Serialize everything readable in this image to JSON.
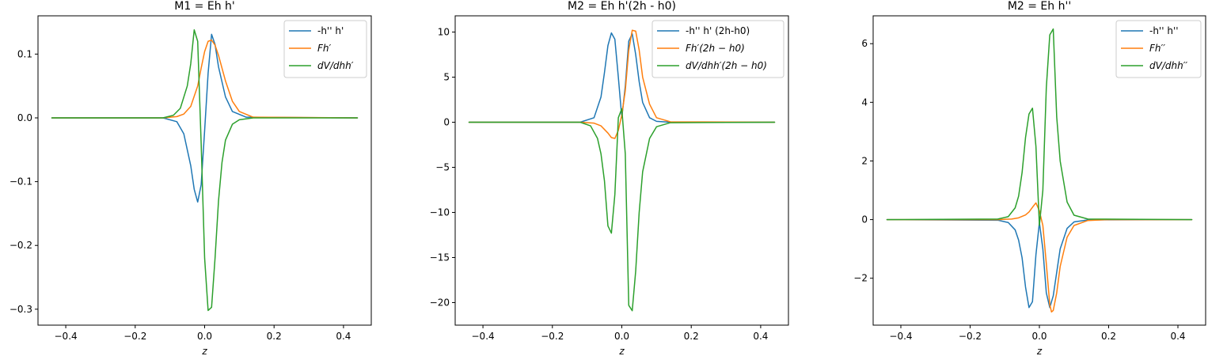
{
  "chart_data": [
    {
      "type": "line",
      "title": "M1 = Eh h'",
      "xlabel": "z",
      "ylabel": "",
      "xlim": [
        -0.48,
        0.48
      ],
      "ylim": [
        -0.325,
        0.16
      ],
      "xticks": [
        -0.4,
        -0.2,
        0.0,
        0.2,
        0.4
      ],
      "xtick_labels": [
        "−0.4",
        "−0.2",
        "0.0",
        "0.2",
        "0.4"
      ],
      "yticks": [
        -0.3,
        -0.2,
        -0.1,
        0.0,
        0.1
      ],
      "ytick_labels": [
        "−0.3",
        "−0.2",
        "−0.1",
        "0.0",
        "0.1"
      ],
      "legend": "top-right",
      "grid": false,
      "series": [
        {
          "name": "-h'' h'",
          "color": "#1f77b4",
          "x": [
            -0.44,
            -0.12,
            -0.08,
            -0.06,
            -0.04,
            -0.03,
            -0.02,
            -0.01,
            0.0,
            0.01,
            0.02,
            0.03,
            0.04,
            0.06,
            0.08,
            0.12,
            0.44
          ],
          "y": [
            0.0,
            0.0,
            -0.006,
            -0.025,
            -0.075,
            -0.112,
            -0.132,
            -0.105,
            -0.02,
            0.07,
            0.131,
            0.115,
            0.08,
            0.033,
            0.01,
            0.001,
            0.0
          ]
        },
        {
          "name": "Fh′",
          "color": "#ff7f0e",
          "x": [
            -0.44,
            -0.12,
            -0.08,
            -0.06,
            -0.04,
            -0.02,
            -0.01,
            0.0,
            0.01,
            0.02,
            0.03,
            0.04,
            0.06,
            0.08,
            0.1,
            0.14,
            0.44
          ],
          "y": [
            0.0,
            0.0,
            0.002,
            0.006,
            0.018,
            0.05,
            0.078,
            0.104,
            0.12,
            0.122,
            0.114,
            0.098,
            0.058,
            0.026,
            0.01,
            0.001,
            0.0
          ]
        },
        {
          "name": "dV/dhh′",
          "color": "#2ca02c",
          "x": [
            -0.44,
            -0.12,
            -0.09,
            -0.07,
            -0.05,
            -0.04,
            -0.03,
            -0.02,
            -0.01,
            0.0,
            0.01,
            0.02,
            0.03,
            0.04,
            0.05,
            0.06,
            0.08,
            0.1,
            0.14,
            0.44
          ],
          "y": [
            0.0,
            0.0,
            0.004,
            0.015,
            0.05,
            0.085,
            0.138,
            0.12,
            -0.04,
            -0.22,
            -0.302,
            -0.297,
            -0.22,
            -0.13,
            -0.07,
            -0.035,
            -0.01,
            -0.003,
            0.0,
            0.0
          ]
        }
      ]
    },
    {
      "type": "line",
      "title": "M2 = Eh h'(2h - h0)",
      "xlabel": "z",
      "ylabel": "",
      "xlim": [
        -0.48,
        0.48
      ],
      "ylim": [
        -22.5,
        11.8
      ],
      "xticks": [
        -0.4,
        -0.2,
        0.0,
        0.2,
        0.4
      ],
      "xtick_labels": [
        "−0.4",
        "−0.2",
        "0.0",
        "0.2",
        "0.4"
      ],
      "yticks": [
        -20,
        -15,
        -10,
        -5,
        0,
        5,
        10
      ],
      "ytick_labels": [
        "−20",
        "−15",
        "−10",
        "−5",
        "0",
        "5",
        "10"
      ],
      "legend": "top-right",
      "grid": false,
      "series": [
        {
          "name": "-h'' h' (2h-h0)",
          "color": "#1f77b4",
          "x": [
            -0.44,
            -0.12,
            -0.08,
            -0.06,
            -0.05,
            -0.04,
            -0.03,
            -0.02,
            -0.01,
            0.0,
            0.01,
            0.02,
            0.03,
            0.04,
            0.05,
            0.06,
            0.08,
            0.1,
            0.14,
            0.44
          ],
          "y": [
            0.0,
            0.0,
            0.5,
            2.8,
            5.5,
            8.5,
            9.9,
            9.2,
            5.0,
            0.5,
            4.0,
            9.0,
            9.8,
            7.5,
            4.5,
            2.2,
            0.5,
            0.1,
            0.0,
            0.0
          ]
        },
        {
          "name": "Fh′(2h − h0)",
          "color": "#ff7f0e",
          "x": [
            -0.44,
            -0.12,
            -0.08,
            -0.06,
            -0.04,
            -0.03,
            -0.02,
            -0.01,
            0.0,
            0.01,
            0.02,
            0.03,
            0.04,
            0.05,
            0.06,
            0.08,
            0.1,
            0.14,
            0.44
          ],
          "y": [
            0.0,
            0.0,
            -0.1,
            -0.4,
            -1.2,
            -1.7,
            -1.8,
            -0.9,
            0.8,
            3.5,
            8.0,
            10.2,
            10.1,
            8.0,
            5.0,
            2.0,
            0.5,
            0.05,
            0.0
          ]
        },
        {
          "name": "dV/dhh′(2h − h0)",
          "color": "#2ca02c",
          "x": [
            -0.44,
            -0.12,
            -0.09,
            -0.07,
            -0.06,
            -0.05,
            -0.04,
            -0.03,
            -0.02,
            -0.01,
            0.0,
            0.01,
            0.02,
            0.03,
            0.04,
            0.05,
            0.06,
            0.08,
            0.1,
            0.14,
            0.44
          ],
          "y": [
            0.0,
            0.0,
            -0.4,
            -1.8,
            -3.5,
            -6.5,
            -11.5,
            -12.3,
            -8.0,
            0.5,
            1.5,
            -3.5,
            -20.3,
            -20.9,
            -16.5,
            -10.0,
            -5.5,
            -1.8,
            -0.5,
            -0.05,
            0.0
          ]
        }
      ]
    },
    {
      "type": "line",
      "title": "M2 = Eh h''",
      "xlabel": "z",
      "ylabel": "",
      "xlim": [
        -0.48,
        0.48
      ],
      "ylim": [
        -3.6,
        6.95
      ],
      "xticks": [
        -0.4,
        -0.2,
        0.0,
        0.2,
        0.4
      ],
      "xtick_labels": [
        "−0.4",
        "−0.2",
        "0.0",
        "0.2",
        "0.4"
      ],
      "yticks": [
        -2,
        0,
        2,
        4,
        6
      ],
      "ytick_labels": [
        "−2",
        "0",
        "2",
        "4",
        "6"
      ],
      "legend": "top-right",
      "grid": false,
      "series": [
        {
          "name": "-h'' h''",
          "color": "#1f77b4",
          "x": [
            -0.44,
            -0.12,
            -0.09,
            -0.07,
            -0.06,
            -0.05,
            -0.04,
            -0.03,
            -0.02,
            -0.01,
            0.0,
            0.01,
            0.02,
            0.03,
            0.04,
            0.05,
            0.06,
            0.08,
            0.1,
            0.14,
            0.44
          ],
          "y": [
            0.0,
            -0.02,
            -0.1,
            -0.35,
            -0.7,
            -1.3,
            -2.3,
            -3.0,
            -2.8,
            -1.2,
            -0.1,
            -1.0,
            -2.5,
            -3.0,
            -2.6,
            -1.8,
            -1.0,
            -0.3,
            -0.08,
            -0.01,
            0.0
          ]
        },
        {
          "name": "Fh′′",
          "color": "#ff7f0e",
          "x": [
            -0.44,
            -0.12,
            -0.08,
            -0.06,
            -0.04,
            -0.03,
            -0.02,
            -0.01,
            0.0,
            0.01,
            0.02,
            0.03,
            0.035,
            0.04,
            0.05,
            0.06,
            0.08,
            0.1,
            0.14,
            0.2,
            0.44
          ],
          "y": [
            0.0,
            0.0,
            0.02,
            0.06,
            0.16,
            0.26,
            0.42,
            0.57,
            0.3,
            -0.2,
            -1.5,
            -2.9,
            -3.15,
            -3.1,
            -2.5,
            -1.6,
            -0.6,
            -0.2,
            -0.03,
            0.0,
            0.0
          ]
        },
        {
          "name": "dV/dhh′′",
          "color": "#2ca02c",
          "x": [
            -0.44,
            -0.12,
            -0.09,
            -0.07,
            -0.06,
            -0.05,
            -0.04,
            -0.03,
            -0.02,
            -0.01,
            0.0,
            0.01,
            0.02,
            0.03,
            0.04,
            0.05,
            0.06,
            0.08,
            0.1,
            0.14,
            0.44
          ],
          "y": [
            0.0,
            0.02,
            0.1,
            0.4,
            0.8,
            1.6,
            2.8,
            3.6,
            3.8,
            2.5,
            -0.2,
            1.0,
            4.5,
            6.3,
            6.5,
            3.5,
            2.0,
            0.6,
            0.15,
            0.02,
            0.0
          ]
        }
      ]
    }
  ]
}
